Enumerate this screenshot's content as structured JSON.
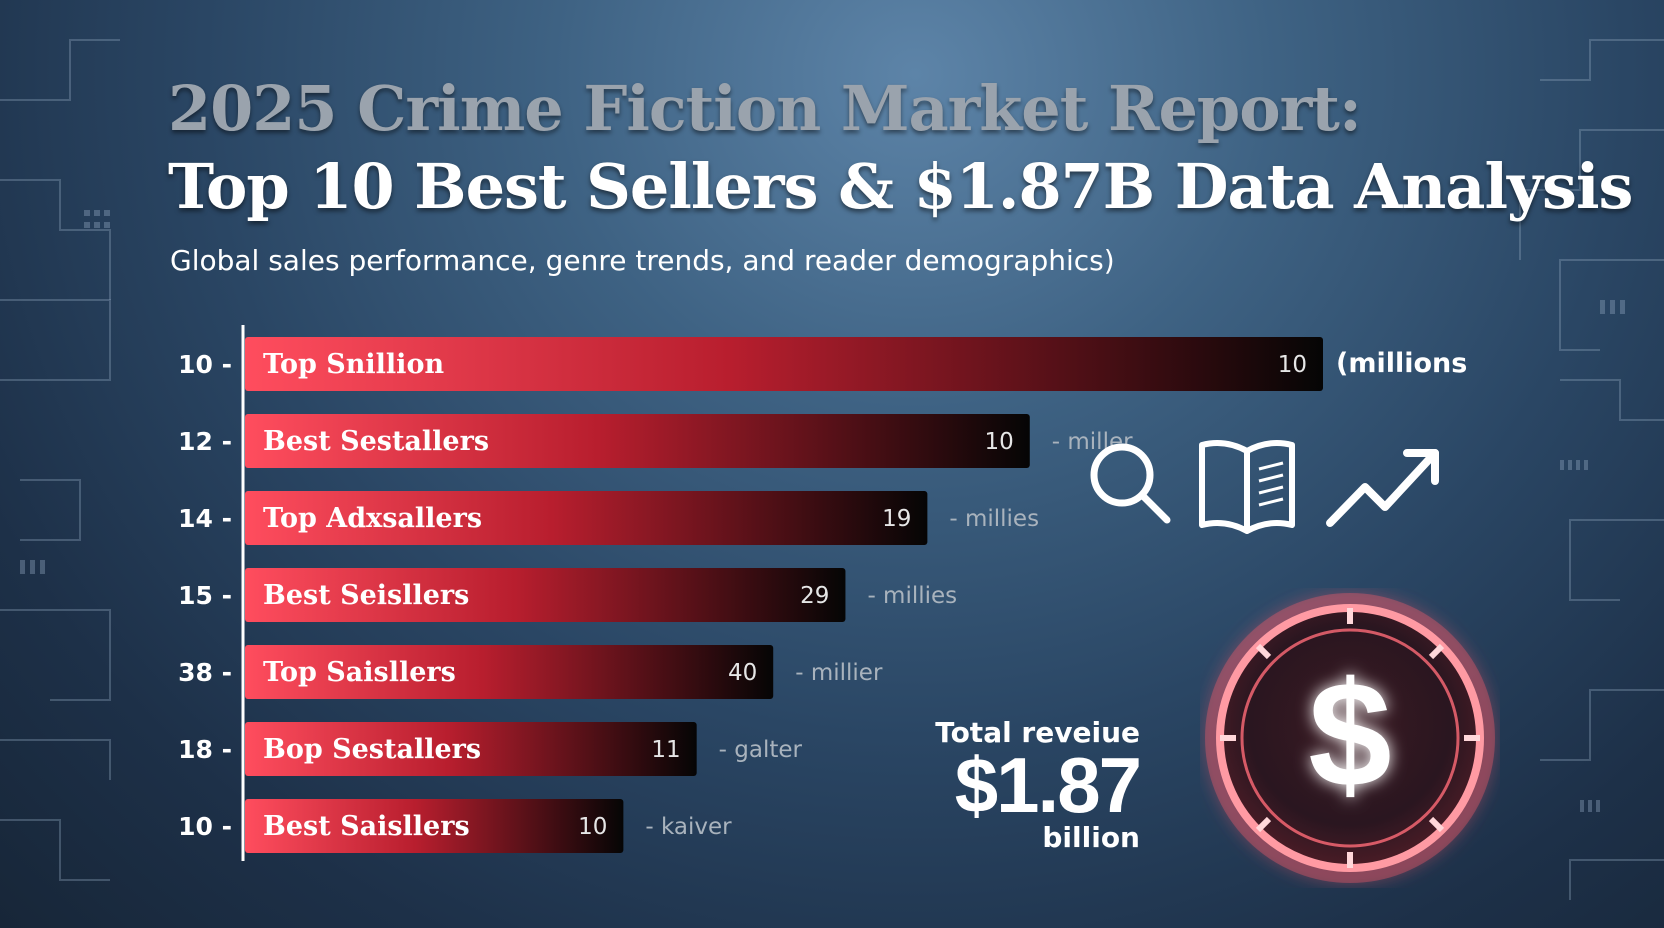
{
  "header": {
    "title_line1": "2025 Crime Fiction Market Report:",
    "title_line2": "Top 10 Best Sellers & $1.87B Data Analysis",
    "subtitle": "Global sales performance, genre trends, and reader demographics)"
  },
  "chart_data": {
    "type": "bar",
    "orientation": "horizontal",
    "categories": [
      "Top Snillion",
      "Best Sestallers",
      "Top Adxsallers",
      "Best Seisllers",
      "Top Saisllers",
      "Bop Sestallers",
      "Best Saisllers"
    ],
    "rank_labels": [
      "10 -",
      "12 -",
      "14 -",
      "15 -",
      "38 -",
      "18 -",
      "10 -"
    ],
    "value_labels": [
      "10",
      "10",
      "19",
      "29",
      "40",
      "11",
      "10"
    ],
    "unit_labels": [
      "(millions",
      "- miller",
      "- millies",
      "- millies",
      "- millier",
      "- galter",
      "- kaiver"
    ],
    "bar_length_fraction": [
      1.0,
      0.728,
      0.633,
      0.557,
      0.49,
      0.419,
      0.351
    ],
    "colors": {
      "bar_start": "#ff4d5e",
      "bar_mid": "#b81e2e",
      "bar_end": "#050505",
      "axis": "#ffffff"
    },
    "grid": false,
    "legend": "none"
  },
  "icons": [
    "magnifier-icon",
    "open-book-icon",
    "trend-arrow-icon",
    "dollar-coin-icon"
  ],
  "revenue": {
    "label": "Total reveiue",
    "value": "$1.87",
    "unit": "billion"
  }
}
